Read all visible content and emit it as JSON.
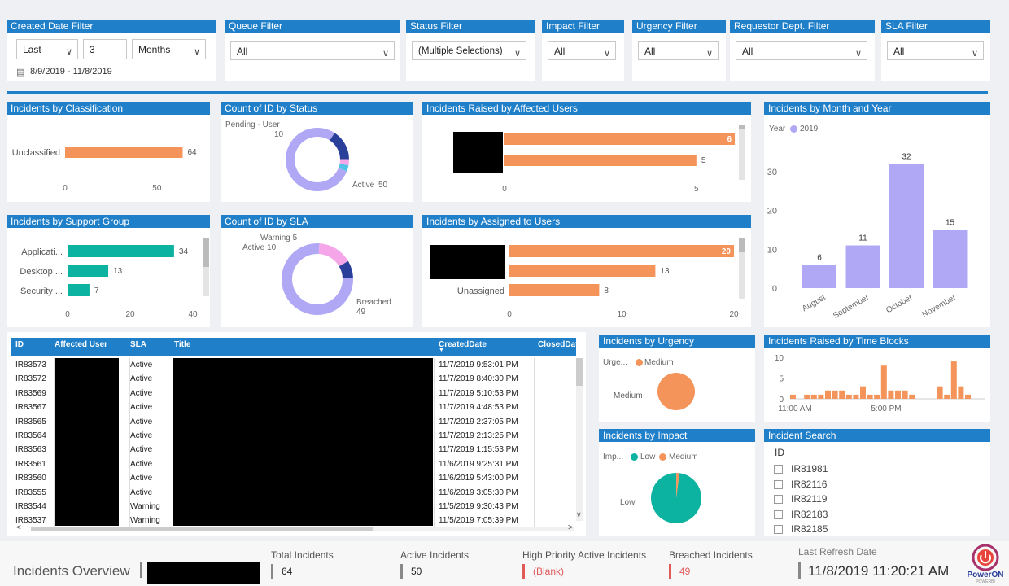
{
  "filters": {
    "created_date": {
      "title": "Created Date Filter",
      "period": "Last",
      "count": "3",
      "unit": "Months",
      "range": "8/9/2019 - 11/8/2019"
    },
    "queue": {
      "title": "Queue Filter",
      "value": "All"
    },
    "status": {
      "title": "Status Filter",
      "value": "(Multiple Selections)"
    },
    "impact": {
      "title": "Impact Filter",
      "value": "All"
    },
    "urgency": {
      "title": "Urgency Filter",
      "value": "All"
    },
    "requestor_dept": {
      "title": "Requestor Dept. Filter",
      "value": "All"
    },
    "sla": {
      "title": "SLA Filter",
      "value": "All"
    }
  },
  "colors": {
    "header_blue": "#1f7fc9",
    "orange": "#f4935a",
    "teal": "#0cb3a0",
    "lavender": "#b0a8f4",
    "navy": "#2a3f9a",
    "pink": "#f4a6e8"
  },
  "chart_data": [
    {
      "id": "classification",
      "type": "bar",
      "title": "Incidents by Classification",
      "categories": [
        "Unclassified"
      ],
      "values": [
        64
      ],
      "xticks": [
        "0",
        "50"
      ],
      "xlim": [
        0,
        70
      ]
    },
    {
      "id": "status",
      "type": "pie",
      "title": "Count of ID by Status",
      "slices": [
        {
          "label": "Active",
          "value": 50
        },
        {
          "label": "Pending - User",
          "value": 10
        },
        {
          "label": "",
          "value": 2
        },
        {
          "label": "",
          "value": 2
        }
      ],
      "data_labels": {
        "active_name": "Active",
        "active_val": "50",
        "pending_name": "Pending - User",
        "pending_val": "10"
      }
    },
    {
      "id": "affected_users",
      "type": "bar",
      "title": "Incidents Raised by Affected Users",
      "categories": [
        "",
        ""
      ],
      "values": [
        6,
        5
      ],
      "xticks": [
        "0",
        "5"
      ],
      "xlim": [
        0,
        6
      ]
    },
    {
      "id": "month_year",
      "type": "bar",
      "title": "Incidents by Month and Year",
      "legend_title": "Year",
      "legend_item": "2019",
      "categories": [
        "August",
        "September",
        "October",
        "November"
      ],
      "values": [
        6,
        11,
        32,
        15
      ],
      "yticks": [
        "0",
        "10",
        "20",
        "30"
      ],
      "ylim": [
        0,
        35
      ]
    },
    {
      "id": "support_group",
      "type": "bar",
      "title": "Incidents by Support Group",
      "categories": [
        "Applicati...",
        "Desktop ...",
        "Security ..."
      ],
      "values": [
        34,
        13,
        7
      ],
      "xticks": [
        "0",
        "20",
        "40"
      ],
      "xlim": [
        0,
        40
      ]
    },
    {
      "id": "sla",
      "type": "pie",
      "title": "Count of ID by SLA",
      "slices": [
        {
          "label": "Breached",
          "value": 49
        },
        {
          "label": "Active",
          "value": 10
        },
        {
          "label": "Warning",
          "value": 5
        }
      ],
      "data_labels": {
        "warning": "Warning 5",
        "active": "Active 10",
        "breached_name": "Breached",
        "breached_val": "49"
      }
    },
    {
      "id": "assigned_users",
      "type": "bar",
      "title": "Incidents by Assigned to Users",
      "categories": [
        "",
        "",
        "Unassigned"
      ],
      "values": [
        20,
        13,
        8
      ],
      "xticks": [
        "0",
        "10",
        "20"
      ],
      "xlim": [
        0,
        20
      ]
    },
    {
      "id": "urgency",
      "type": "pie",
      "title": "Incidents by Urgency",
      "legend_title": "Urge...",
      "legend_item": "Medium",
      "slices": [
        {
          "label": "Medium",
          "value": 100
        }
      ]
    },
    {
      "id": "time_blocks",
      "type": "bar",
      "title": "Incidents Raised by Time Blocks",
      "values": [
        1,
        0,
        1,
        1,
        1,
        2,
        2,
        2,
        1,
        1,
        3,
        1,
        1,
        8,
        2,
        2,
        2,
        1,
        0,
        0,
        0,
        3,
        1,
        9,
        3,
        1
      ],
      "yticks": [
        "0",
        "5",
        "10"
      ],
      "xticks": [
        "11:00 AM",
        "5:00 PM"
      ],
      "ylim": [
        0,
        10
      ]
    },
    {
      "id": "impact",
      "type": "pie",
      "title": "Incidents by Impact",
      "legend_title": "Imp...",
      "legend_items": [
        "Low",
        "Medium"
      ],
      "slices": [
        {
          "label": "Low",
          "value": 98
        },
        {
          "label": "Medium",
          "value": 2
        }
      ]
    }
  ],
  "table": {
    "headers": [
      "ID",
      "Affected User",
      "SLA",
      "Title",
      "CreatedDate",
      "ClosedDat"
    ],
    "rows": [
      [
        "IR83573",
        "Active",
        "11/7/2019 9:53:01 PM"
      ],
      [
        "IR83572",
        "Active",
        "11/7/2019 8:40:30 PM"
      ],
      [
        "IR83569",
        "Active",
        "11/7/2019 5:10:53 PM"
      ],
      [
        "IR83567",
        "Active",
        "11/7/2019 4:48:53 PM"
      ],
      [
        "IR83565",
        "Active",
        "11/7/2019 2:37:05 PM"
      ],
      [
        "IR83564",
        "Active",
        "11/7/2019 2:13:25 PM"
      ],
      [
        "IR83563",
        "Active",
        "11/7/2019 1:15:53 PM"
      ],
      [
        "IR83561",
        "Active",
        "11/6/2019 9:25:31 PM"
      ],
      [
        "IR83560",
        "Active",
        "11/6/2019 5:43:00 PM"
      ],
      [
        "IR83555",
        "Active",
        "11/6/2019 3:05:30 PM"
      ],
      [
        "IR83544",
        "Warning",
        "11/5/2019 9:30:43 PM"
      ],
      [
        "IR83537",
        "Warning",
        "11/5/2019 7:05:39 PM"
      ]
    ]
  },
  "search": {
    "title": "Incident Search",
    "column": "ID",
    "items": [
      "IR81981",
      "IR82116",
      "IR82119",
      "IR82183",
      "IR82185"
    ]
  },
  "footer": {
    "title": "Incidents Overview",
    "kpis": [
      {
        "label": "Total Incidents",
        "value": "64"
      },
      {
        "label": "Active Incidents",
        "value": "50"
      },
      {
        "label": "High Priority Active Incidents",
        "value": "(Blank)"
      },
      {
        "label": "Breached Incidents",
        "value": "49"
      }
    ],
    "refresh_label": "Last Refresh Date",
    "refresh_value": "11/8/2019 11:20:21 AM",
    "logo_text": "PowerON",
    "logo_sub": "POWERBI"
  }
}
